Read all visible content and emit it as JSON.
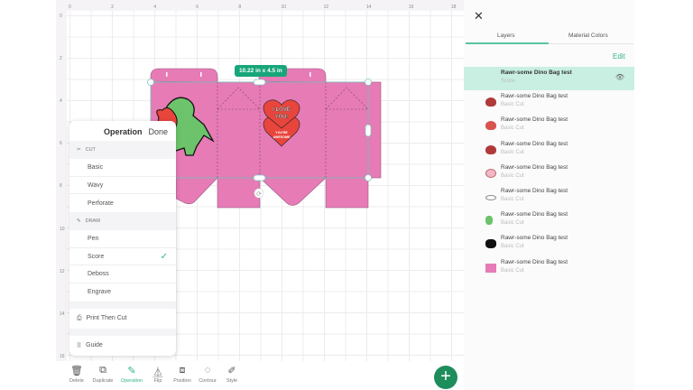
{
  "canvas": {
    "ruler_h": [
      "0",
      "2",
      "4",
      "6",
      "8",
      "10",
      "12",
      "14",
      "16",
      "18"
    ],
    "ruler_v": [
      "0",
      "2",
      "4",
      "6",
      "8",
      "10",
      "12",
      "14",
      "16"
    ],
    "dimension_label": "10.22 in x 4.5 in",
    "design_text": [
      "I LOVE",
      "YOU!",
      "YOU'RE",
      "AWESOME"
    ],
    "colors": {
      "box": "#e67bb6",
      "selection": "#7fc6c0",
      "accent": "#2fb38e"
    }
  },
  "operation_menu": {
    "title": "Operation",
    "done_label": "Done",
    "cut_section": "CUT",
    "cut_items": [
      "Basic",
      "Wavy",
      "Perforate"
    ],
    "draw_section": "DRAW",
    "draw_items": [
      "Pen",
      "Score",
      "Deboss",
      "Engrave"
    ],
    "selected": "Score",
    "print_then_cut": "Print Then Cut",
    "guide": "Guide"
  },
  "toolbar": {
    "items": [
      {
        "label": "Delete",
        "icon": "trash-icon"
      },
      {
        "label": "Duplicate",
        "icon": "duplicate-icon"
      },
      {
        "label": "Operation",
        "icon": "pen-icon",
        "active": true
      },
      {
        "label": "Flip",
        "icon": "flip-icon"
      },
      {
        "label": "Position",
        "icon": "position-icon"
      },
      {
        "label": "Contour",
        "icon": "contour-icon"
      },
      {
        "label": "Style",
        "icon": "style-icon"
      }
    ],
    "add_label": "+"
  },
  "panel": {
    "tabs": [
      "Layers",
      "Material Colors"
    ],
    "active_tab": "Layers",
    "edit_label": "Edit",
    "layers": [
      {
        "name": "Rawr-some Dino Bag test",
        "op": "Score",
        "selected": true,
        "thumb": "none"
      },
      {
        "name": "Rawr-some Dino Bag test",
        "op": "Basic Cut",
        "thumb": "heart-dark"
      },
      {
        "name": "Rawr-some Dino Bag test",
        "op": "Basic Cut",
        "thumb": "heart-red"
      },
      {
        "name": "Rawr-some Dino Bag test",
        "op": "Basic Cut",
        "thumb": "heart-dark"
      },
      {
        "name": "Rawr-some Dino Bag test",
        "op": "Basic Cut",
        "thumb": "oval-pink"
      },
      {
        "name": "Rawr-some Dino Bag test",
        "op": "Basic Cut",
        "thumb": "outline"
      },
      {
        "name": "Rawr-some Dino Bag test",
        "op": "Basic Cut",
        "thumb": "dino-green"
      },
      {
        "name": "Rawr-some Dino Bag test",
        "op": "Basic Cut",
        "thumb": "dino-black"
      },
      {
        "name": "Rawr-some Dino Bag test",
        "op": "Basic Cut",
        "thumb": "box-pink"
      }
    ]
  }
}
